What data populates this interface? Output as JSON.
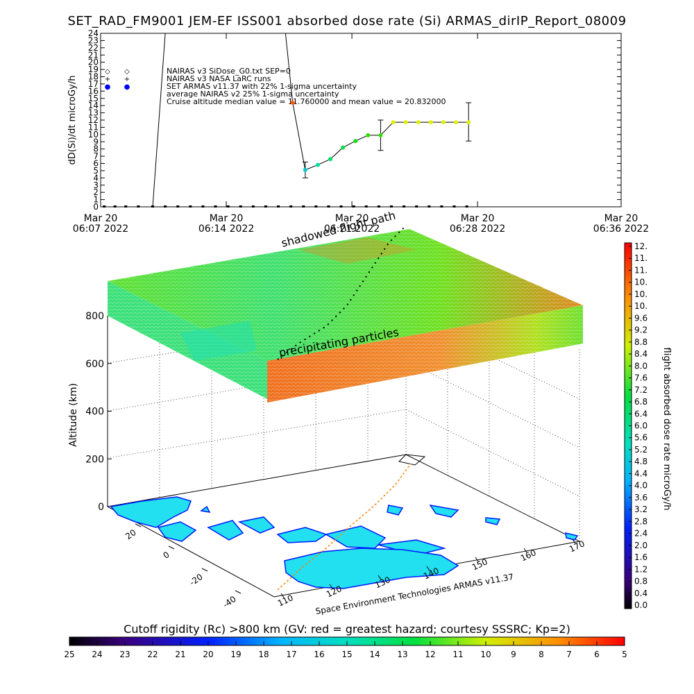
{
  "title": "SET_RAD_FM9001  JEM-EF ISS001 absorbed dose rate (Si) ARMAS_dirIP_Report_08009",
  "chart_data": [
    {
      "type": "line",
      "ylabel": "dD(Si)/dt microGy/h",
      "y_ticks": [
        "0",
        "1",
        "2",
        "3",
        "4",
        "5",
        "6",
        "7",
        "8",
        "9",
        "10",
        "11",
        "12",
        "13",
        "14",
        "15",
        "16",
        "17",
        "18",
        "19",
        "20",
        "21",
        "22",
        "23",
        "24"
      ],
      "ylim": [
        0,
        24
      ],
      "x_ticks": [
        {
          "line1": "Mar 20",
          "line2": "06:07 2022",
          "minute": 0
        },
        {
          "line1": "Mar 20",
          "line2": "06:14 2022",
          "minute": 7
        },
        {
          "line1": "Mar 20",
          "line2": "06:21 2022",
          "minute": 14
        },
        {
          "line1": "Mar 20",
          "line2": "06:28 2022",
          "minute": 21
        },
        {
          "line1": "Mar 20",
          "line2": "06:36 2022",
          "minute": 29
        }
      ],
      "legend": [
        {
          "symbol": "◇",
          "color": "#000000",
          "label": "NAIRAS v3 SiDose_G0.txt SEP=0"
        },
        {
          "symbol": "+",
          "color": "#000000",
          "label": "NAIRAS v3 NASA LaRC runs"
        },
        {
          "symbol": "●",
          "color": "#0000ff",
          "label": "SET ARMAS v11.37 with 22% 1-sigma uncertainty"
        },
        {
          "symbol": "",
          "color": "#000000",
          "label": "average NAIRAS v2 25% 1-sigma uncertainty"
        },
        {
          "symbol": "",
          "color": "#000000",
          "label": "Cruise altitude median value = 11.760000 and mean value = 20.832000"
        }
      ],
      "line_series": {
        "name": "SET ARMAS v11.37",
        "points": [
          [
            0.2,
            0
          ],
          [
            0.8,
            0
          ],
          [
            1.4,
            0
          ],
          [
            2.1,
            0
          ],
          [
            2.9,
            0
          ],
          [
            3.6,
            24
          ],
          [
            10.3,
            24
          ],
          [
            10.7,
            14.4
          ],
          [
            11.4,
            5.1
          ],
          [
            12.1,
            5.8
          ],
          [
            12.8,
            6.6
          ],
          [
            13.5,
            8.2
          ],
          [
            14.2,
            9.1
          ],
          [
            14.9,
            9.9
          ],
          [
            15.6,
            9.9
          ],
          [
            16.3,
            11.7
          ],
          [
            17.0,
            11.7
          ],
          [
            17.7,
            11.7
          ],
          [
            18.4,
            11.7
          ],
          [
            19.1,
            11.7
          ],
          [
            19.8,
            11.7
          ],
          [
            20.5,
            11.7
          ]
        ]
      },
      "markers": [
        {
          "minute": 10.7,
          "value": 14.4,
          "color": "#ff5a00"
        },
        {
          "minute": 11.4,
          "value": 5.1,
          "color": "#00c8c8"
        },
        {
          "minute": 12.1,
          "value": 5.8,
          "color": "#00e0a0"
        },
        {
          "minute": 12.8,
          "value": 6.6,
          "color": "#00e070"
        },
        {
          "minute": 13.5,
          "value": 8.2,
          "color": "#00e040"
        },
        {
          "minute": 14.2,
          "value": 9.1,
          "color": "#10e010"
        },
        {
          "minute": 14.9,
          "value": 9.9,
          "color": "#30e000"
        },
        {
          "minute": 15.6,
          "value": 9.9,
          "color": "#30e000"
        },
        {
          "minute": 16.3,
          "value": 11.7,
          "color": "#e0f000"
        },
        {
          "minute": 17.0,
          "value": 11.7,
          "color": "#e0f000"
        },
        {
          "minute": 17.7,
          "value": 11.7,
          "color": "#e0f000"
        },
        {
          "minute": 18.4,
          "value": 11.7,
          "color": "#e0f000"
        },
        {
          "minute": 19.1,
          "value": 11.7,
          "color": "#e0f000"
        },
        {
          "minute": 19.8,
          "value": 11.7,
          "color": "#e0f000"
        },
        {
          "minute": 20.5,
          "value": 11.7,
          "color": "#e0f000"
        }
      ],
      "error_bars": [
        {
          "minute": 11.4,
          "low": 4.0,
          "high": 6.2
        },
        {
          "minute": 15.6,
          "low": 7.8,
          "high": 12.0
        },
        {
          "minute": 20.5,
          "low": 9.1,
          "high": 14.4
        }
      ],
      "baseline_markers_minutes": [
        0.2,
        0.8,
        1.4,
        2.1,
        2.9,
        3.6,
        4.3,
        5.0,
        5.7,
        6.4,
        7.1,
        7.8,
        8.5,
        9.2,
        9.9,
        10.6,
        11.3,
        12.0,
        12.7,
        13.4,
        14.1,
        14.8,
        15.5,
        16.2,
        16.9,
        17.6,
        18.3,
        19.0,
        19.7,
        20.4
      ]
    },
    {
      "type": "scatter3d",
      "zlabel": "Altitude (km)",
      "z_ticks": [
        "0",
        "200",
        "400",
        "600",
        "800"
      ],
      "lat_ticks": [
        "20",
        "0",
        "-20",
        "-40"
      ],
      "lon_ticks": [
        "110",
        "120",
        "130",
        "140",
        "150",
        "160",
        "170"
      ],
      "annotations": [
        "shadowed flight path",
        "precipitating particles"
      ],
      "credit": "Space Environment Technologies ARMAS v11.37"
    }
  ],
  "colorbar_right": {
    "label": "flight absorbed dose rate microGy/h",
    "ticks": [
      "12.",
      "11.",
      "11.",
      "10.",
      "10.",
      "10.",
      "9.6",
      "9.2",
      "8.8",
      "8.4",
      "8.0",
      "7.6",
      "7.2",
      "6.8",
      "6.4",
      "6.0",
      "5.6",
      "5.2",
      "4.8",
      "4.4",
      "4.0",
      "3.6",
      "3.2",
      "2.8",
      "2.4",
      "2.0",
      "1.6",
      "1.2",
      "0.8",
      "0.4",
      "0.0"
    ]
  },
  "colorbar_bottom": {
    "label": "Cutoff rigidity (Rc) >800 km (GV: red = greatest hazard; courtesy SSSRC; Kp=2)",
    "ticks": [
      "25",
      "24",
      "23",
      "22",
      "21",
      "20",
      "19",
      "18",
      "17",
      "16",
      "15",
      "14",
      "13",
      "12",
      "11",
      "10",
      "9",
      "8",
      "7",
      "6",
      "5"
    ]
  }
}
